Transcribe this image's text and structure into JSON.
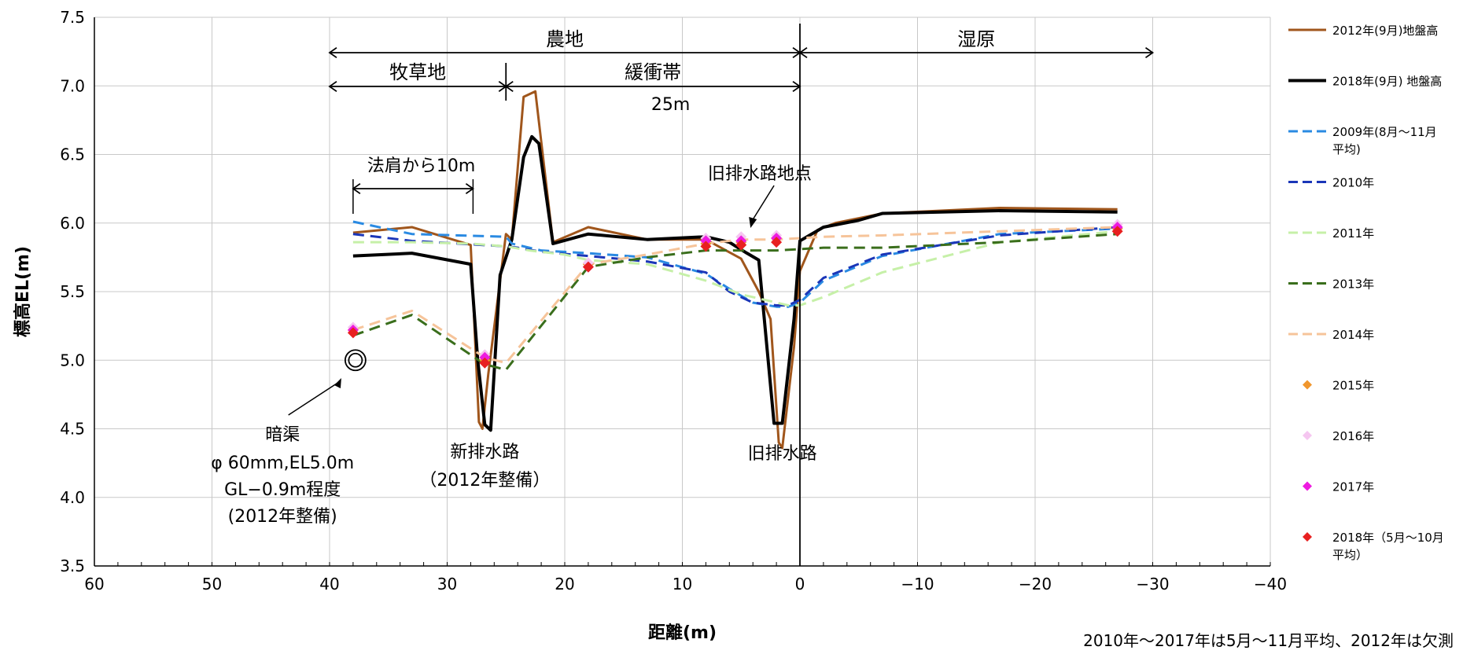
{
  "chart_data": {
    "type": "line",
    "xlabel": "距離(m)",
    "ylabel": "標高EL(m)",
    "xlim": [
      60,
      -40
    ],
    "ylim": [
      3.5,
      7.5
    ],
    "x_ticks": [
      60,
      50,
      40,
      30,
      20,
      10,
      0,
      -10,
      -20,
      -30,
      -40
    ],
    "x_tick_labels": [
      "60",
      "50",
      "40",
      "30",
      "20",
      "10",
      "0",
      "−10",
      "−20",
      "−30",
      "−40"
    ],
    "y_ticks": [
      3.5,
      4.0,
      4.5,
      5.0,
      5.5,
      6.0,
      6.5,
      7.0,
      7.5
    ],
    "y_tick_labels": [
      "3.5",
      "4.0",
      "4.5",
      "5.0",
      "5.5",
      "6.0",
      "6.5",
      "7.0",
      "7.5"
    ],
    "grid": true,
    "legend_position": "right",
    "series": [
      {
        "name": "2012年(9月)地盤高",
        "style": "solid",
        "color": "#a0561c",
        "width": 3,
        "x": [
          38,
          33,
          28,
          27.3,
          27,
          26.5,
          25,
          24.5,
          23.5,
          22.5,
          21,
          18,
          13,
          8,
          5,
          3.5,
          2.5,
          1.8,
          1.5,
          0.5,
          0,
          -1.5,
          -3,
          -7,
          -17,
          -27
        ],
        "y": [
          5.93,
          5.97,
          5.84,
          4.55,
          4.5,
          4.9,
          5.92,
          5.88,
          6.92,
          6.96,
          5.86,
          5.97,
          5.88,
          5.88,
          5.74,
          5.5,
          5.3,
          4.4,
          4.36,
          5.1,
          5.65,
          5.95,
          6.0,
          6.07,
          6.11,
          6.1
        ]
      },
      {
        "name": "2018年(9月) 地盤高",
        "style": "solid",
        "color": "#000000",
        "width": 4,
        "x": [
          38,
          33,
          28,
          27.4,
          26.8,
          26.3,
          25.5,
          24.5,
          23.5,
          22.8,
          22.2,
          21,
          18,
          13,
          8,
          6,
          4.5,
          3.5,
          2.2,
          1.5,
          0.5,
          0,
          -2,
          -5,
          -7,
          -17,
          -27
        ],
        "y": [
          5.76,
          5.78,
          5.7,
          5.0,
          4.53,
          4.49,
          5.62,
          5.88,
          6.48,
          6.63,
          6.58,
          5.85,
          5.92,
          5.88,
          5.9,
          5.86,
          5.78,
          5.73,
          4.54,
          4.54,
          5.3,
          5.87,
          5.97,
          6.02,
          6.07,
          6.09,
          6.08
        ]
      },
      {
        "name": "2009年(8月～11月\n平均)",
        "style": "dashed",
        "color": "#2a8ae2",
        "x": [
          38,
          33,
          25,
          24.5,
          22,
          18,
          13,
          8,
          6,
          4,
          2,
          1,
          0,
          -2,
          -7,
          -17,
          -27
        ],
        "y": [
          6.01,
          5.92,
          5.9,
          5.85,
          5.8,
          5.78,
          5.75,
          5.63,
          5.52,
          5.42,
          5.39,
          5.39,
          5.42,
          5.58,
          5.76,
          5.92,
          5.96
        ]
      },
      {
        "name": "2010年",
        "style": "dashed",
        "color": "#1b36b8",
        "x": [
          38,
          33,
          25,
          24,
          22,
          18,
          13,
          8,
          6,
          4,
          2,
          1,
          0,
          -2,
          -7,
          -17,
          -27
        ],
        "y": [
          5.92,
          5.87,
          5.83,
          5.82,
          5.79,
          5.76,
          5.72,
          5.64,
          5.5,
          5.42,
          5.4,
          5.4,
          5.44,
          5.6,
          5.77,
          5.91,
          5.97
        ]
      },
      {
        "name": "2011年",
        "style": "dashed",
        "color": "#c6f0a8",
        "x": [
          38,
          33,
          28,
          25,
          23,
          20,
          18,
          13,
          8,
          5,
          3,
          1,
          0,
          -2,
          -7,
          -17,
          -27
        ],
        "y": [
          5.86,
          5.86,
          5.85,
          5.83,
          5.8,
          5.77,
          5.73,
          5.7,
          5.58,
          5.48,
          5.44,
          5.4,
          5.4,
          5.46,
          5.64,
          5.86,
          5.94
        ]
      },
      {
        "name": "2013年",
        "style": "dashed",
        "color": "#3a6e1c",
        "x": [
          38,
          33,
          26.8,
          25,
          18,
          13,
          8,
          5,
          2,
          0,
          -2,
          -7,
          -17,
          -27
        ],
        "y": [
          5.18,
          5.33,
          4.97,
          4.93,
          5.68,
          5.75,
          5.8,
          5.8,
          5.8,
          5.81,
          5.82,
          5.82,
          5.86,
          5.92
        ]
      },
      {
        "name": "2014年",
        "style": "dashed",
        "color": "#f6c49a",
        "x": [
          38,
          33,
          26.8,
          25,
          18,
          13,
          8,
          5,
          2,
          0,
          -2,
          -7,
          -17,
          -27
        ],
        "y": [
          5.22,
          5.36,
          5.02,
          4.98,
          5.7,
          5.77,
          5.85,
          5.88,
          5.88,
          5.89,
          5.9,
          5.91,
          5.94,
          5.97
        ]
      },
      {
        "name": "2015年",
        "style": "marker",
        "color": "#f0962d",
        "x": [
          38,
          26.8,
          18,
          8,
          5,
          2,
          -27
        ],
        "y": [
          5.22,
          5.0,
          5.7,
          5.85,
          5.86,
          5.89,
          5.96
        ]
      },
      {
        "name": "2016年",
        "style": "marker",
        "color": "#f5c6f0",
        "x": [
          38,
          26.8,
          18,
          8,
          5,
          2,
          -27
        ],
        "y": [
          5.24,
          5.04,
          5.71,
          5.89,
          5.9,
          5.91,
          5.99
        ]
      },
      {
        "name": "2017年",
        "style": "marker",
        "color": "#ee1ae0",
        "x": [
          38,
          26.8,
          18,
          8,
          5,
          2,
          -27
        ],
        "y": [
          5.22,
          5.02,
          5.68,
          5.87,
          5.87,
          5.89,
          5.97
        ]
      },
      {
        "name": "2018年（5月～10月\n平均）",
        "style": "marker",
        "color": "#e82020",
        "x": [
          38,
          26.8,
          18,
          8,
          5,
          2,
          -27
        ],
        "y": [
          5.2,
          4.98,
          5.68,
          5.83,
          5.84,
          5.86,
          5.94
        ]
      }
    ],
    "annotations": {
      "nouchi": "農地",
      "shitsugen": "湿原",
      "bokusouchi": "牧草地",
      "kanshoutai": "緩衝帯",
      "kanshoutai_width": "25m",
      "norikata": "法肩から10m",
      "kyuhaisui_point": "旧排水路地点",
      "ankyo_lines": [
        "暗渠",
        "φ 60mm,EL5.0m",
        "GL−0.9m程度",
        "(2012年整備)"
      ],
      "shinhaisui_lines": [
        "新排水路",
        "（2012年整備）"
      ],
      "kyuhaisui": "旧排水路"
    },
    "note": "2010年～2017年は5月～11月平均、2012年は欠測"
  }
}
